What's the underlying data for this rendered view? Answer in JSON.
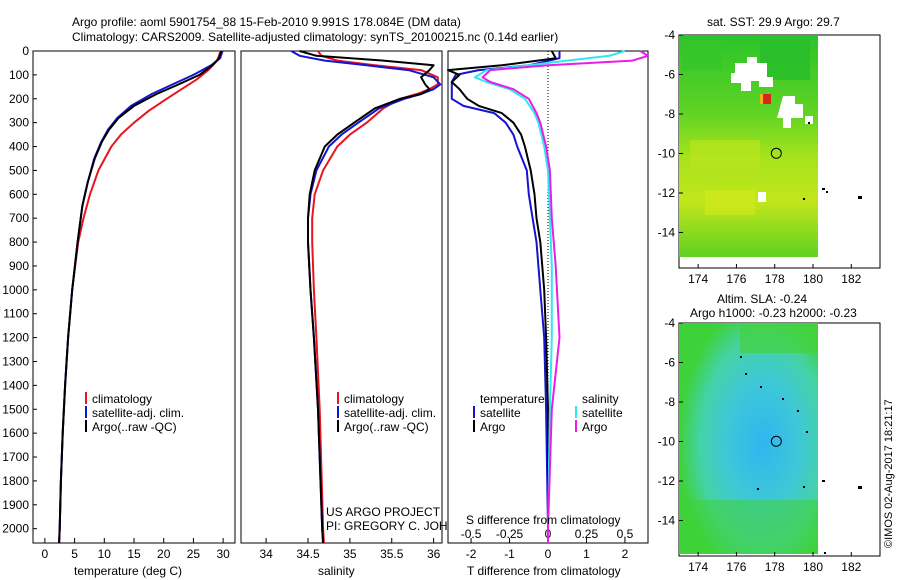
{
  "header": {
    "title_line1": "Argo profile: aoml 5901754_88 15-Feb-2010 9.991S 178.084E (DM data)",
    "title_line2": "Climatology: CARS2009. Satellite-adjusted climatology: synTS_20100215.nc (0.14d earlier)"
  },
  "colors": {
    "climatology": "#e8141e",
    "satellite": "#1414d2",
    "argo": "#000000",
    "sat_salinity": "#2ee8ee",
    "argo_salinity": "#e61ee6"
  },
  "chart_data": [
    {
      "id": "temperature",
      "type": "line",
      "xlabel": "temperature (deg C)",
      "ylabel": "",
      "xlim": [
        -2,
        32
      ],
      "ylim": [
        2060,
        0
      ],
      "xticks": [
        0,
        5,
        10,
        15,
        20,
        25,
        30
      ],
      "yticks": [
        0,
        100,
        200,
        300,
        400,
        500,
        600,
        700,
        800,
        900,
        1000,
        1100,
        1200,
        1300,
        1400,
        1500,
        1600,
        1700,
        1800,
        1900,
        2000
      ],
      "legend": [
        "climatology",
        "satellite-adj. clim.",
        "Argo(..raw -QC)"
      ],
      "legend_position": "lower-center",
      "series": [
        {
          "name": "climatology",
          "color": "#e8141e",
          "depth": [
            0,
            40,
            80,
            120,
            160,
            200,
            250,
            300,
            350,
            400,
            500,
            600,
            700,
            800,
            1000,
            1200,
            1400,
            1600,
            1800,
            2000,
            2060
          ],
          "values": [
            29.6,
            29.0,
            27.5,
            25.5,
            23.0,
            20.5,
            17.5,
            15.0,
            12.8,
            11.2,
            9.0,
            7.6,
            6.5,
            5.6,
            4.6,
            3.9,
            3.4,
            3.0,
            2.7,
            2.5,
            2.4
          ]
        },
        {
          "name": "satellite-adj. clim.",
          "color": "#1414d2",
          "depth": [
            0,
            30,
            60,
            100,
            140,
            180,
            230,
            280,
            330,
            380,
            450,
            550,
            650,
            800,
            1000,
            1200,
            1400,
            1600,
            1800,
            2000,
            2060
          ],
          "values": [
            29.9,
            29.5,
            28.0,
            25.0,
            21.5,
            18.0,
            14.5,
            12.2,
            10.6,
            9.5,
            8.3,
            7.2,
            6.3,
            5.5,
            4.6,
            3.9,
            3.4,
            3.0,
            2.7,
            2.5,
            2.4
          ]
        },
        {
          "name": "Argo(..raw -QC)",
          "color": "#000000",
          "depth": [
            0,
            30,
            60,
            100,
            140,
            180,
            230,
            280,
            330,
            380,
            450,
            550,
            650,
            800,
            1000,
            1200,
            1400,
            1600,
            1800,
            2000,
            2060
          ],
          "values": [
            29.7,
            29.3,
            28.2,
            26.0,
            22.5,
            18.8,
            15.0,
            12.4,
            10.8,
            9.6,
            8.4,
            7.2,
            6.3,
            5.5,
            4.6,
            3.9,
            3.4,
            3.0,
            2.7,
            2.5,
            2.4
          ]
        }
      ]
    },
    {
      "id": "salinity",
      "type": "line",
      "xlabel": "salinity",
      "xlim": [
        33.7,
        36.1
      ],
      "ylim": [
        2060,
        0
      ],
      "xticks": [
        34,
        34.5,
        35,
        35.5,
        36
      ],
      "legend": [
        "climatology",
        "satellite-adj. clim.",
        "Argo(..raw -QC)"
      ],
      "legend_position": "lower-center",
      "series": [
        {
          "name": "climatology",
          "color": "#e8141e",
          "depth": [
            0,
            20,
            40,
            60,
            80,
            110,
            140,
            160,
            180,
            200,
            240,
            300,
            350,
            400,
            500,
            600,
            700,
            800,
            1000,
            1200,
            1500,
            2000,
            2060
          ],
          "values": [
            34.62,
            34.66,
            34.85,
            35.3,
            35.85,
            36.05,
            36.05,
            35.95,
            35.8,
            35.6,
            35.4,
            35.2,
            35.0,
            34.85,
            34.68,
            34.58,
            34.55,
            34.55,
            34.57,
            34.6,
            34.64,
            34.68,
            34.69
          ]
        },
        {
          "name": "satellite-adj. clim.",
          "color": "#1414d2",
          "depth": [
            0,
            20,
            40,
            60,
            80,
            110,
            140,
            160,
            180,
            200,
            240,
            300,
            350,
            400,
            500,
            600,
            700,
            800,
            1000,
            1200,
            1500,
            2000,
            2060
          ],
          "values": [
            34.3,
            34.4,
            34.7,
            35.2,
            35.7,
            36.0,
            36.08,
            36.0,
            35.85,
            35.65,
            35.35,
            35.1,
            34.9,
            34.75,
            34.6,
            34.53,
            34.5,
            34.5,
            34.53,
            34.57,
            34.62,
            34.67,
            34.68
          ]
        },
        {
          "name": "Argo(..raw -QC)",
          "color": "#000000",
          "depth": [
            0,
            20,
            40,
            60,
            80,
            110,
            140,
            160,
            180,
            200,
            240,
            300,
            350,
            400,
            500,
            600,
            700,
            800,
            1000,
            1200,
            1500,
            2000,
            2060
          ],
          "values": [
            34.4,
            34.6,
            35.4,
            36.0,
            35.95,
            35.85,
            35.9,
            35.95,
            35.85,
            35.6,
            35.3,
            35.05,
            34.85,
            34.7,
            34.58,
            34.52,
            34.5,
            34.5,
            34.53,
            34.57,
            34.62,
            34.67,
            34.68
          ]
        }
      ]
    },
    {
      "id": "difference",
      "type": "line",
      "xlabel": "T difference from climatology",
      "xlabel_top": "S difference from climatology",
      "xlim": [
        -2.6,
        2.6
      ],
      "ylim": [
        2060,
        0
      ],
      "xticks": [
        -2,
        -1,
        0,
        1,
        2
      ],
      "xticks_s": [
        -0.5,
        -0.25,
        0,
        0.25,
        0.5
      ],
      "legend_temperature_title": "temperature",
      "legend_salinity_title": "salinity",
      "legend": [
        "satellite",
        "Argo",
        "satellite",
        "Argo"
      ],
      "legend_position": "lower-center",
      "series": [
        {
          "name": "temperature satellite",
          "color": "#1414d2",
          "depth": [
            0,
            30,
            60,
            80,
            100,
            130,
            160,
            200,
            230,
            260,
            300,
            350,
            400,
            500,
            600,
            700,
            800,
            1000,
            1200,
            1500,
            2000,
            2060
          ],
          "values": [
            0.3,
            0.3,
            -0.5,
            -1.8,
            -2.4,
            -2.5,
            -2.5,
            -2.5,
            -2.2,
            -1.4,
            -1.1,
            -0.9,
            -0.8,
            -0.55,
            -0.5,
            -0.4,
            -0.3,
            -0.2,
            -0.1,
            -0.05,
            0.0,
            0.0
          ]
        },
        {
          "name": "temperature Argo",
          "color": "#000000",
          "depth": [
            0,
            30,
            60,
            80,
            100,
            130,
            160,
            200,
            230,
            260,
            300,
            350,
            400,
            500,
            600,
            700,
            800,
            1000,
            1200,
            1500,
            2000,
            2060
          ],
          "values": [
            0.1,
            0.2,
            -1.2,
            -2.6,
            -2.3,
            -2.5,
            -2.3,
            -2.1,
            -1.8,
            -1.2,
            -0.9,
            -0.7,
            -0.6,
            -0.45,
            -0.35,
            -0.3,
            -0.2,
            -0.1,
            -0.05,
            0.0,
            0.0,
            0.0
          ]
        },
        {
          "name": "salinity satellite",
          "color": "#2ee8ee",
          "depth": [
            0,
            20,
            40,
            60,
            80,
            110,
            130,
            160,
            200,
            260,
            300,
            400,
            500,
            700,
            900,
            1200,
            1500,
            2000,
            2060
          ],
          "values": [
            2.0,
            1.6,
            0.5,
            -0.5,
            -1.6,
            -1.9,
            -1.6,
            -1.0,
            -0.6,
            -0.35,
            -0.25,
            -0.1,
            0.0,
            0.05,
            0.1,
            0.1,
            0.05,
            0.0,
            0.0
          ]
        },
        {
          "name": "salinity Argo",
          "color": "#e61ee6",
          "depth": [
            0,
            20,
            40,
            60,
            80,
            110,
            130,
            160,
            200,
            260,
            300,
            400,
            500,
            700,
            900,
            1200,
            1500,
            2000,
            2060
          ],
          "values": [
            2.4,
            2.6,
            2.2,
            0.0,
            -1.5,
            -1.7,
            -1.5,
            -0.9,
            -0.5,
            -0.3,
            -0.2,
            -0.05,
            0.05,
            0.1,
            0.2,
            0.3,
            0.1,
            0.0,
            0.0
          ]
        }
      ]
    },
    {
      "id": "sst_map",
      "type": "heatmap",
      "title": "sat. SST: 29.9 Argo: 29.7",
      "xlim": [
        173,
        183.5
      ],
      "ylim": [
        -15.8,
        -4
      ],
      "xticks": [
        174,
        176,
        178,
        180,
        182
      ],
      "yticks": [
        -4,
        -6,
        -8,
        -10,
        -12,
        -14
      ],
      "marker": {
        "lon": 178.084,
        "lat": -9.991
      }
    },
    {
      "id": "sla_map",
      "type": "heatmap",
      "title": "Altim. SLA: -0.24",
      "subtitle": "Argo h1000: -0.23 h2000: -0.23",
      "xlim": [
        173,
        183.5
      ],
      "ylim": [
        -15.8,
        -4
      ],
      "xticks": [
        174,
        176,
        178,
        180,
        182
      ],
      "yticks": [
        -4,
        -6,
        -8,
        -10,
        -12,
        -14
      ],
      "marker": {
        "lon": 178.084,
        "lat": -9.991
      }
    }
  ],
  "footer": {
    "project_line1": "US ARGO PROJECT",
    "project_line2": "PI: GREGORY C. JOHNSON",
    "credit": "©IMOS 02-Aug-2017 18:21:17"
  }
}
